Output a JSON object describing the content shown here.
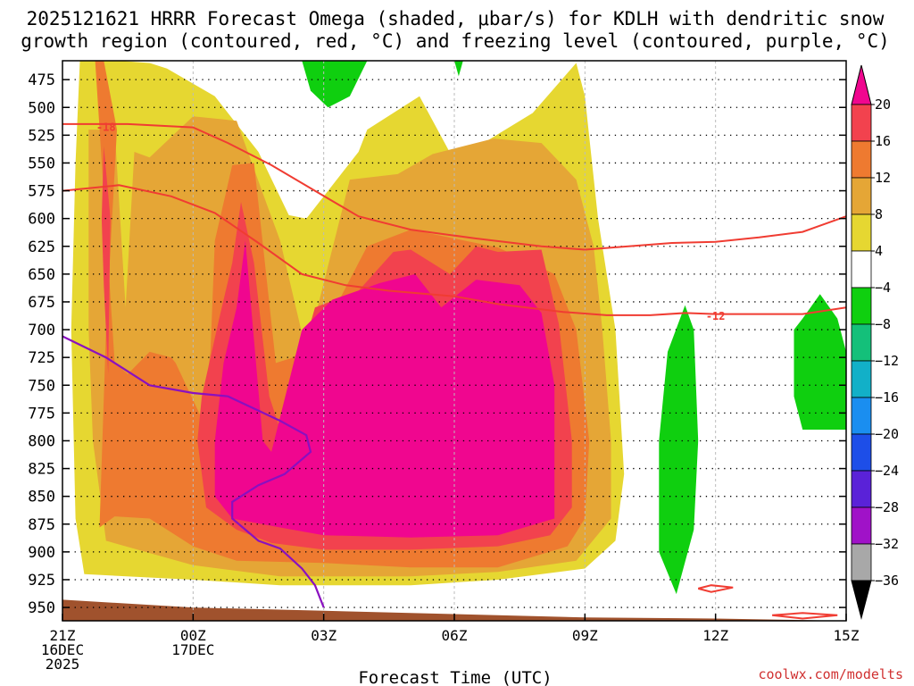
{
  "chart_data": {
    "type": "heatmap",
    "title_lines": [
      "2025121621 HRRR Forecast Omega (shaded, μbar/s) for KDLH with dendritic snow",
      "growth region (contoured, red, °C) and freezing level (contoured, purple, °C)"
    ],
    "xlabel": "Forecast Time (UTC)",
    "credit": "coolwx.com/modelts",
    "x_range_hours": [
      0,
      18
    ],
    "x_ticks": [
      {
        "hour": 0,
        "lines": [
          "21Z",
          "16DEC",
          "2025"
        ]
      },
      {
        "hour": 3,
        "lines": [
          "00Z",
          "17DEC"
        ]
      },
      {
        "hour": 6,
        "lines": [
          "03Z"
        ]
      },
      {
        "hour": 9,
        "lines": [
          "06Z"
        ]
      },
      {
        "hour": 12,
        "lines": [
          "09Z"
        ]
      },
      {
        "hour": 15,
        "lines": [
          "12Z"
        ]
      },
      {
        "hour": 18,
        "lines": [
          "15Z"
        ]
      }
    ],
    "y_range_mb": [
      458,
      962
    ],
    "y_ticks": [
      475,
      500,
      525,
      550,
      575,
      600,
      625,
      650,
      675,
      700,
      725,
      750,
      775,
      800,
      825,
      850,
      875,
      900,
      925,
      950
    ],
    "colorbar": {
      "labels": [
        "20",
        "16",
        "12",
        "8",
        "4",
        "−4",
        "−8",
        "−12",
        "−16",
        "−20",
        "−24",
        "−28",
        "−32",
        "−36"
      ],
      "bands": [
        {
          "lo": 20,
          "hi": 24,
          "color": "#f0068f"
        },
        {
          "lo": 16,
          "hi": 20,
          "color": "#f2424e"
        },
        {
          "lo": 12,
          "hi": 16,
          "color": "#ee7a30"
        },
        {
          "lo": 8,
          "hi": 12,
          "color": "#e5a636"
        },
        {
          "lo": 4,
          "hi": 8,
          "color": "#e6d731"
        },
        {
          "lo": -4,
          "hi": 4,
          "color": "#ffffff"
        },
        {
          "lo": -8,
          "hi": -4,
          "color": "#0fcf0f"
        },
        {
          "lo": -12,
          "hi": -8,
          "color": "#14c07a"
        },
        {
          "lo": -16,
          "hi": -12,
          "color": "#12b0c8"
        },
        {
          "lo": -20,
          "hi": -16,
          "color": "#1a8ef0"
        },
        {
          "lo": -24,
          "hi": -20,
          "color": "#1d4ee8"
        },
        {
          "lo": -28,
          "hi": -24,
          "color": "#5a22d8"
        },
        {
          "lo": -32,
          "hi": -28,
          "color": "#a012c8"
        },
        {
          "lo": -36,
          "hi": -32,
          "color": "#a8a8a8"
        }
      ],
      "top_arrow_color": "#f0068f",
      "bottom_arrow_color": "#000000"
    },
    "shaded_regions": [
      {
        "level": "4",
        "color": "#e6d731",
        "points": [
          [
            0.4,
            458
          ],
          [
            1.3,
            458
          ],
          [
            2.0,
            460
          ],
          [
            2.4,
            465
          ],
          [
            3.5,
            490
          ],
          [
            4.5,
            540
          ],
          [
            5.2,
            597
          ],
          [
            5.6,
            600
          ],
          [
            6.8,
            540
          ],
          [
            7.0,
            520
          ],
          [
            8.2,
            490
          ],
          [
            9.0,
            548
          ],
          [
            10.8,
            505
          ],
          [
            11.8,
            460
          ],
          [
            12.0,
            490
          ],
          [
            12.3,
            600
          ],
          [
            12.7,
            700
          ],
          [
            12.9,
            830
          ],
          [
            12.7,
            890
          ],
          [
            12.0,
            915
          ],
          [
            10.0,
            925
          ],
          [
            8.0,
            930
          ],
          [
            5.0,
            930
          ],
          [
            3.0,
            925
          ],
          [
            0.5,
            920
          ],
          [
            0.3,
            870
          ],
          [
            0.2,
            700
          ],
          [
            0.3,
            550
          ]
        ]
      },
      {
        "level": "8",
        "color": "#e5a636",
        "points": [
          [
            0.6,
            520
          ],
          [
            1.2,
            520
          ],
          [
            1.45,
            680
          ],
          [
            1.65,
            540
          ],
          [
            2.0,
            545
          ],
          [
            3.0,
            508
          ],
          [
            4.0,
            512
          ],
          [
            4.7,
            588
          ],
          [
            5.0,
            620
          ],
          [
            5.6,
            720
          ],
          [
            6.6,
            565
          ],
          [
            7.7,
            560
          ],
          [
            8.5,
            542
          ],
          [
            9.9,
            528
          ],
          [
            11.0,
            532
          ],
          [
            11.8,
            565
          ],
          [
            12.2,
            625
          ],
          [
            12.4,
            700
          ],
          [
            12.6,
            800
          ],
          [
            12.6,
            870
          ],
          [
            11.8,
            908
          ],
          [
            10.0,
            918
          ],
          [
            8.0,
            922
          ],
          [
            5.0,
            922
          ],
          [
            3.0,
            912
          ],
          [
            1.0,
            890
          ],
          [
            0.7,
            800
          ],
          [
            0.6,
            700
          ]
        ]
      },
      {
        "level": "12",
        "color": "#ee7a30",
        "points": [
          [
            0.75,
            458
          ],
          [
            0.95,
            458
          ],
          [
            1.25,
            520
          ],
          [
            1.0,
            700
          ],
          [
            0.9,
            820
          ],
          [
            0.85,
            878
          ],
          [
            1.2,
            868
          ],
          [
            2.0,
            870
          ],
          [
            3.0,
            895
          ],
          [
            4.0,
            908
          ],
          [
            6.0,
            910
          ],
          [
            8.0,
            914
          ],
          [
            10.0,
            914
          ],
          [
            11.6,
            895
          ],
          [
            12.0,
            870
          ],
          [
            12.1,
            800
          ],
          [
            11.8,
            700
          ],
          [
            11.3,
            650
          ],
          [
            10.0,
            626
          ],
          [
            8.0,
            610
          ],
          [
            7.0,
            625
          ],
          [
            6.0,
            700
          ],
          [
            5.3,
            725
          ],
          [
            4.9,
            730
          ],
          [
            4.4,
            550
          ],
          [
            3.9,
            552
          ],
          [
            3.5,
            620
          ],
          [
            3.4,
            720
          ],
          [
            3.2,
            780
          ],
          [
            2.6,
            730
          ],
          [
            2.5,
            725
          ],
          [
            2.0,
            720
          ],
          [
            1.5,
            740
          ],
          [
            1.2,
            730
          ]
        ]
      },
      {
        "level": "16",
        "color": "#f2424e",
        "points": [
          [
            0.95,
            535
          ],
          [
            1.1,
            600
          ],
          [
            1.05,
            740
          ],
          [
            0.95,
            660
          ],
          [
            0.9,
            600
          ]
        ]
      },
      {
        "level": "16",
        "color": "#f2424e",
        "points": [
          [
            4.1,
            585
          ],
          [
            4.4,
            640
          ],
          [
            4.75,
            760
          ],
          [
            5.0,
            790
          ],
          [
            5.8,
            680
          ],
          [
            6.8,
            665
          ],
          [
            7.6,
            630
          ],
          [
            8.0,
            628
          ],
          [
            8.9,
            650
          ],
          [
            9.5,
            625
          ],
          [
            10.0,
            630
          ],
          [
            11.0,
            628
          ],
          [
            11.4,
            695
          ],
          [
            11.7,
            800
          ],
          [
            11.7,
            860
          ],
          [
            11.2,
            885
          ],
          [
            10.0,
            895
          ],
          [
            8.0,
            898
          ],
          [
            6.0,
            898
          ],
          [
            4.8,
            892
          ],
          [
            4.0,
            880
          ],
          [
            3.3,
            860
          ],
          [
            3.1,
            800
          ],
          [
            3.2,
            760
          ],
          [
            3.6,
            690
          ],
          [
            3.9,
            640
          ]
        ]
      },
      {
        "level": "20",
        "color": "#f0068f",
        "points": [
          [
            4.2,
            620
          ],
          [
            4.6,
            800
          ],
          [
            4.8,
            810
          ],
          [
            5.5,
            700
          ],
          [
            6.2,
            673
          ],
          [
            7.3,
            658
          ],
          [
            8.1,
            650
          ],
          [
            8.7,
            680
          ],
          [
            9.5,
            655
          ],
          [
            10.5,
            660
          ],
          [
            11.0,
            685
          ],
          [
            11.3,
            750
          ],
          [
            11.3,
            870
          ],
          [
            10.0,
            885
          ],
          [
            8.0,
            887
          ],
          [
            6.0,
            885
          ],
          [
            5.0,
            878
          ],
          [
            3.9,
            870
          ],
          [
            3.5,
            850
          ],
          [
            3.5,
            800
          ],
          [
            3.7,
            730
          ],
          [
            4.0,
            680
          ]
        ]
      },
      {
        "level": "-4",
        "color": "#0fcf0f",
        "points": [
          [
            5.5,
            458
          ],
          [
            7.0,
            458
          ],
          [
            6.6,
            490
          ],
          [
            6.1,
            500
          ],
          [
            5.7,
            485
          ]
        ]
      },
      {
        "level": "-4",
        "color": "#0fcf0f",
        "points": [
          [
            9.0,
            458
          ],
          [
            9.2,
            458
          ],
          [
            9.1,
            472
          ]
        ]
      },
      {
        "level": "-4",
        "color": "#0fcf0f",
        "points": [
          [
            14.3,
            678
          ],
          [
            14.5,
            700
          ],
          [
            14.6,
            800
          ],
          [
            14.5,
            880
          ],
          [
            14.1,
            938
          ],
          [
            13.7,
            900
          ],
          [
            13.7,
            800
          ],
          [
            13.9,
            720
          ]
        ]
      },
      {
        "level": "-4",
        "color": "#0fcf0f",
        "points": [
          [
            17.4,
            668
          ],
          [
            17.8,
            690
          ],
          [
            18.0,
            720
          ],
          [
            18.0,
            790
          ],
          [
            17.5,
            790
          ],
          [
            17.0,
            790
          ],
          [
            16.8,
            760
          ],
          [
            16.8,
            700
          ],
          [
            17.0,
            690
          ]
        ]
      }
    ],
    "red_contours": [
      {
        "label": "-18",
        "label_at": [
          1.0,
          517
        ],
        "points": [
          [
            0,
            515
          ],
          [
            0.5,
            515
          ],
          [
            1.5,
            515
          ],
          [
            3.0,
            518
          ],
          [
            3.8,
            532
          ],
          [
            4.8,
            552
          ],
          [
            5.8,
            575
          ],
          [
            6.8,
            598
          ],
          [
            8.0,
            610
          ],
          [
            9.5,
            618
          ],
          [
            11.0,
            625
          ],
          [
            12.0,
            628
          ],
          [
            13.0,
            625
          ],
          [
            14.0,
            622
          ],
          [
            15.0,
            621
          ],
          [
            16.0,
            617
          ],
          [
            17.0,
            612
          ],
          [
            18.0,
            598
          ]
        ]
      },
      {
        "label": "-12",
        "label_at": [
          15.0,
          687
        ],
        "points": [
          [
            0,
            575
          ],
          [
            1.3,
            570
          ],
          [
            2.5,
            580
          ],
          [
            3.5,
            595
          ],
          [
            4.5,
            622
          ],
          [
            5.5,
            650
          ],
          [
            6.5,
            660
          ],
          [
            7.5,
            665
          ],
          [
            9.0,
            670
          ],
          [
            10.0,
            677
          ],
          [
            11.5,
            684
          ],
          [
            12.5,
            687
          ],
          [
            13.5,
            687
          ],
          [
            14.3,
            685
          ],
          [
            15.0,
            686
          ],
          [
            16.0,
            686
          ],
          [
            17.0,
            686
          ],
          [
            18.0,
            680
          ]
        ]
      },
      {
        "label": "",
        "label_at": null,
        "points": [
          [
            14.6,
            933
          ],
          [
            14.9,
            930
          ],
          [
            15.4,
            932
          ],
          [
            14.9,
            936
          ],
          [
            14.6,
            933
          ]
        ]
      },
      {
        "label": "",
        "label_at": null,
        "points": [
          [
            16.3,
            957
          ],
          [
            17.0,
            955
          ],
          [
            17.8,
            957
          ],
          [
            17.0,
            960
          ],
          [
            16.3,
            957
          ]
        ]
      }
    ],
    "purple_contours": [
      {
        "label": "",
        "points": [
          [
            0,
            706
          ],
          [
            1.0,
            725
          ],
          [
            2.0,
            750
          ],
          [
            3.0,
            757
          ],
          [
            3.8,
            760
          ],
          [
            5.0,
            782
          ],
          [
            5.6,
            795
          ],
          [
            5.7,
            810
          ],
          [
            5.1,
            830
          ],
          [
            4.5,
            840
          ],
          [
            3.9,
            855
          ],
          [
            3.9,
            870
          ],
          [
            4.2,
            880
          ],
          [
            4.5,
            890
          ],
          [
            5.0,
            897
          ],
          [
            5.5,
            915
          ],
          [
            5.8,
            930
          ],
          [
            6.0,
            950
          ]
        ]
      }
    ],
    "terrain_color": "#a0522d",
    "terrain": [
      [
        0,
        943
      ],
      [
        3.0,
        950
      ],
      [
        6.0,
        953
      ],
      [
        9.0,
        956
      ],
      [
        12.0,
        959
      ],
      [
        15.0,
        960
      ],
      [
        18.0,
        962
      ]
    ]
  }
}
